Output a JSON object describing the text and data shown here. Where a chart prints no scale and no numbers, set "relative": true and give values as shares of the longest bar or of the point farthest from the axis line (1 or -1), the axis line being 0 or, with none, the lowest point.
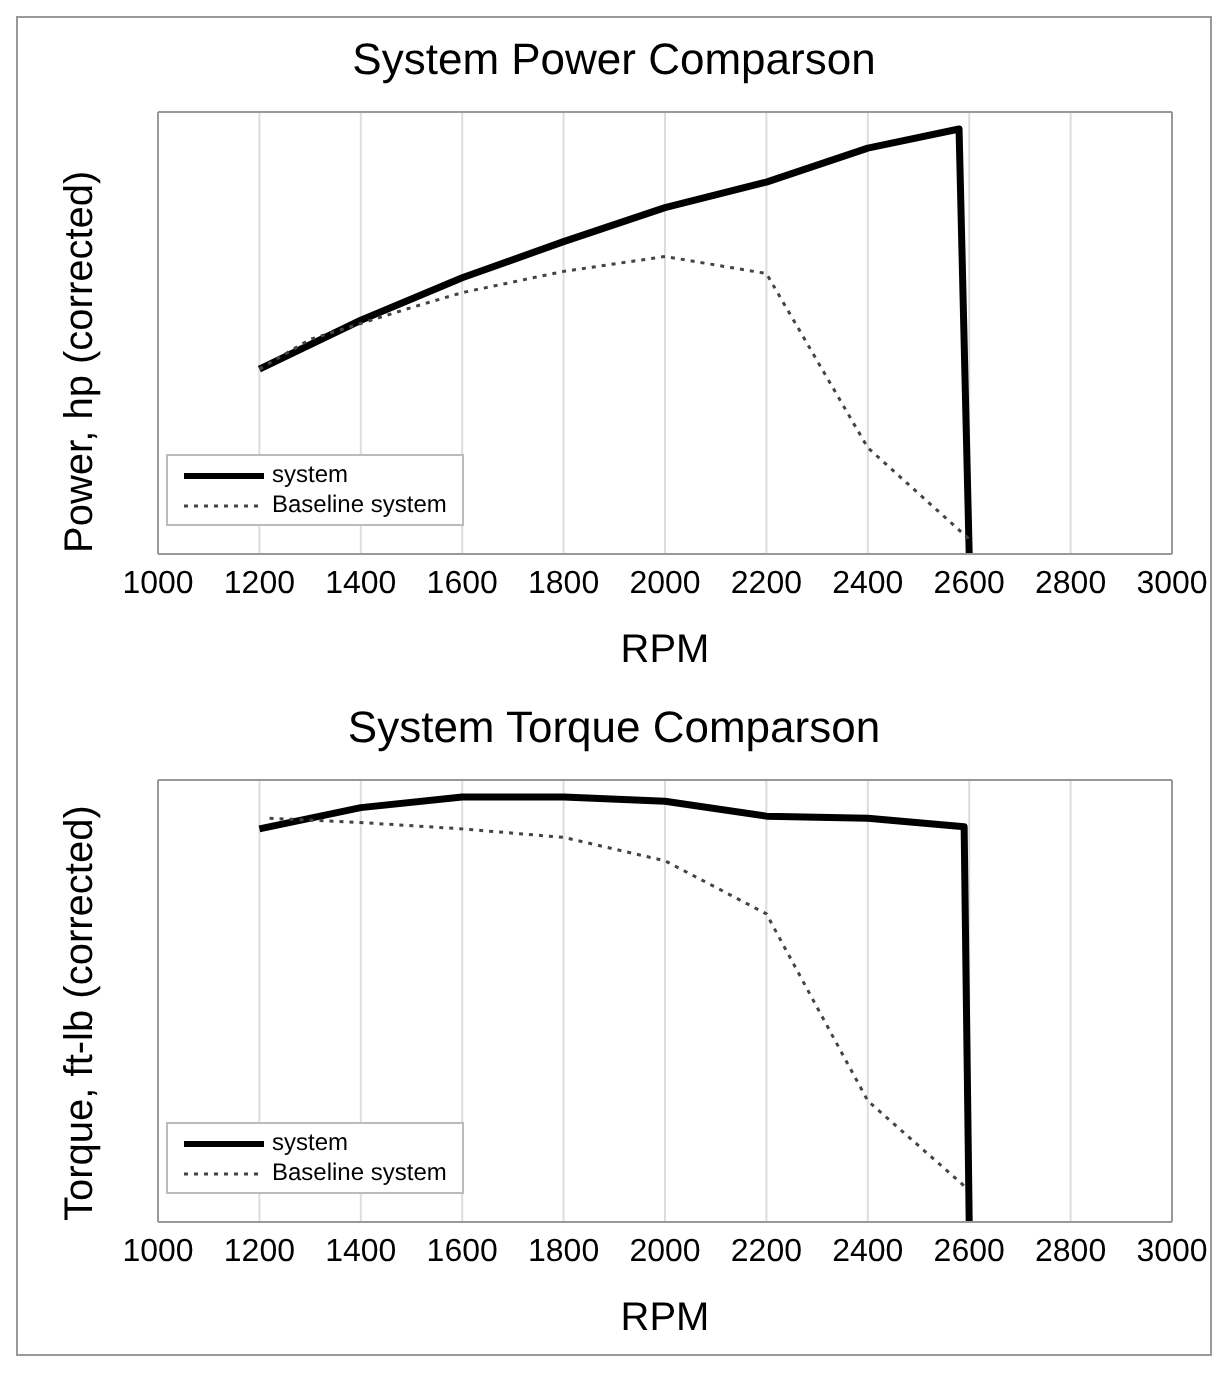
{
  "chart_data": [
    {
      "type": "line",
      "title": "System Power Comparson",
      "xlabel": "RPM",
      "ylabel": "Power, hp (corrected)",
      "relative": true,
      "xlim": [
        1000,
        3000
      ],
      "xticks": [
        1000,
        1200,
        1400,
        1600,
        1800,
        2000,
        2200,
        2400,
        2600,
        2800,
        3000
      ],
      "grid": "x",
      "legend": "bottom left",
      "marker": "none",
      "series": [
        {
          "name": "system",
          "color": "#000000",
          "line_style": "solid",
          "x": [
            1200,
            1400,
            1600,
            1800,
            2000,
            2200,
            2400,
            2580,
            2600
          ],
          "values": [
            0.435,
            0.55,
            0.65,
            0.735,
            0.815,
            0.875,
            0.955,
            1,
            0
          ]
        },
        {
          "name": "Baseline system",
          "color": "#444444",
          "line_style": "dotted",
          "x": [
            1200,
            1300,
            1500,
            1600,
            1800,
            2000,
            2200,
            2400,
            2600
          ],
          "values": [
            0.435,
            0.505,
            0.58,
            0.615,
            0.665,
            0.7,
            0.66,
            0.25,
            0.035
          ]
        }
      ]
    },
    {
      "type": "line",
      "title": "System Torque Comparson",
      "xlabel": "RPM",
      "ylabel": "Torque, ft-lb (corrected)",
      "relative": true,
      "xlim": [
        1000,
        3000
      ],
      "xticks": [
        1000,
        1200,
        1400,
        1600,
        1800,
        2000,
        2200,
        2400,
        2600,
        2800,
        3000
      ],
      "grid": "x",
      "legend": "bottom left",
      "marker": "none",
      "series": [
        {
          "name": "system",
          "color": "#000000",
          "line_style": "solid",
          "x": [
            1200,
            1400,
            1600,
            1800,
            2000,
            2200,
            2400,
            2590,
            2600
          ],
          "values": [
            0.925,
            0.975,
            1,
            1,
            0.99,
            0.955,
            0.95,
            0.93,
            0
          ]
        },
        {
          "name": "Baseline system",
          "color": "#444444",
          "line_style": "dotted",
          "x": [
            1220,
            1400,
            1600,
            1800,
            2000,
            2200,
            2400,
            2590
          ],
          "values": [
            0.95,
            0.94,
            0.925,
            0.905,
            0.85,
            0.725,
            0.285,
            0.085
          ]
        }
      ]
    }
  ]
}
